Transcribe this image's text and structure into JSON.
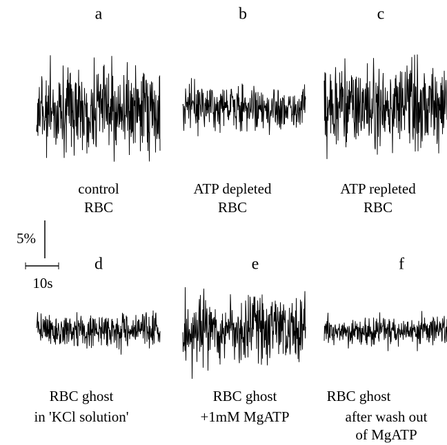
{
  "panels": [
    {
      "letter": "a",
      "caption": [
        "control",
        "RBC"
      ]
    },
    {
      "letter": "b",
      "caption": [
        "ATP depleted",
        "RBC"
      ]
    },
    {
      "letter": "c",
      "caption": [
        "ATP repleted",
        "RBC"
      ]
    },
    {
      "letter": "d",
      "caption": [
        "RBC ghost",
        "in  'KCl solution'"
      ]
    },
    {
      "letter": "e",
      "caption": [
        "RBC ghost",
        "+1mM MgATP"
      ]
    },
    {
      "letter": "f",
      "caption": [
        "RBC ghost",
        "after wash out",
        "of MgATP"
      ]
    }
  ],
  "scale_bar": {
    "vertical": "5%",
    "horizontal": "10s"
  }
}
